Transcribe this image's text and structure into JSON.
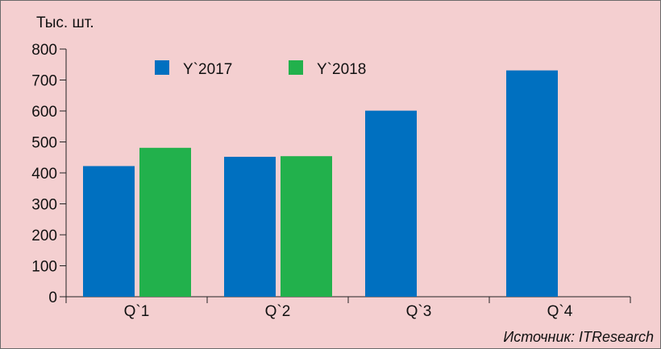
{
  "chart_data": {
    "type": "bar",
    "ylabel": "Тыс. шт.",
    "categories": [
      "Q`1",
      "Q`2",
      "Q`3",
      "Q`4"
    ],
    "series": [
      {
        "name": "Y`2017",
        "color": "#0070c0",
        "values": [
          422,
          452,
          601,
          731
        ]
      },
      {
        "name": "Y`2018",
        "color": "#22b14c",
        "values": [
          481,
          454,
          null,
          null
        ]
      }
    ],
    "ylim": [
      0,
      800
    ],
    "yticks": [
      0,
      100,
      200,
      300,
      400,
      500,
      600,
      700,
      800
    ],
    "legend_position": "top-left",
    "grid": false,
    "source": "Источник: ITResearch"
  }
}
